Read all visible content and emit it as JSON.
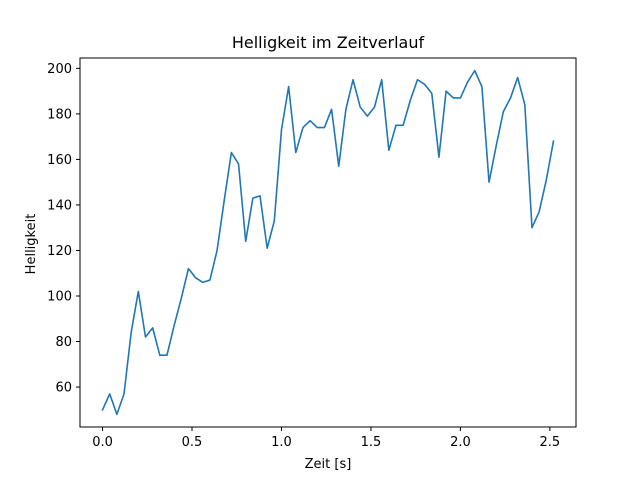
{
  "chart_data": {
    "type": "line",
    "title": "Helligkeit im Zeitverlauf",
    "xlabel": "Zeit [s]",
    "ylabel": "Helligkeit",
    "xlim": [
      -0.126,
      2.646
    ],
    "ylim": [
      42.45,
      204.55
    ],
    "xticks": [
      0.0,
      0.5,
      1.0,
      1.5,
      2.0,
      2.5
    ],
    "xtick_labels": [
      "0.0",
      "0.5",
      "1.0",
      "1.5",
      "2.0",
      "2.5"
    ],
    "yticks": [
      60,
      80,
      100,
      120,
      140,
      160,
      180,
      200
    ],
    "ytick_labels": [
      "60",
      "80",
      "100",
      "120",
      "140",
      "160",
      "180",
      "200"
    ],
    "grid": false,
    "series": [
      {
        "color": "#1f77b4",
        "x": [
          0.0,
          0.04,
          0.08,
          0.12,
          0.16,
          0.2,
          0.24,
          0.28,
          0.32,
          0.36,
          0.4,
          0.44,
          0.48,
          0.52,
          0.56,
          0.6,
          0.64,
          0.68,
          0.72,
          0.76,
          0.8,
          0.84,
          0.88,
          0.92,
          0.96,
          1.0,
          1.04,
          1.08,
          1.12,
          1.16,
          1.2,
          1.24,
          1.28,
          1.32,
          1.36,
          1.4,
          1.44,
          1.48,
          1.52,
          1.56,
          1.6,
          1.64,
          1.68,
          1.72,
          1.76,
          1.8,
          1.84,
          1.88,
          1.92,
          1.96,
          2.0,
          2.04,
          2.08,
          2.12,
          2.16,
          2.2,
          2.24,
          2.28,
          2.32,
          2.36,
          2.4,
          2.44,
          2.48,
          2.52
        ],
        "y": [
          50,
          57,
          48,
          57,
          84,
          102,
          82,
          86,
          74,
          74,
          87,
          99,
          112,
          108,
          106,
          107,
          120,
          142,
          163,
          158,
          124,
          143,
          144,
          121,
          133,
          173,
          192,
          163,
          174,
          177,
          174,
          174,
          182,
          157,
          182,
          195,
          183,
          179,
          183,
          195,
          164,
          175,
          175,
          186,
          195,
          193,
          189,
          161,
          190,
          187,
          187,
          194,
          199,
          192,
          150,
          166,
          181,
          187,
          196,
          184,
          130,
          137,
          151,
          168
        ]
      }
    ]
  }
}
